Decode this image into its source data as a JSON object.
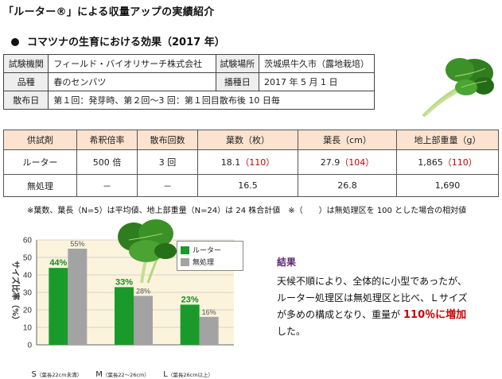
{
  "header": {
    "title": "「ルーター®」による収量アップの実績紹介"
  },
  "section": {
    "title": "コマツナの生育における効果（2017 年）"
  },
  "info_table": {
    "org_label": "試験機関",
    "org_value": "フィールド・バイオリサーチ株式会社",
    "site_label": "試験場所",
    "site_value": "茨城県牛久市（露地栽培）",
    "variety_label": "品種",
    "variety_value": "春のセンバツ",
    "sow_label": "播種日",
    "sow_value": "2017 年 5 月 1 日",
    "spray_label": "散布日",
    "spray_value": "第１回：発芽時、第２回～3 回：第１回目散布後 10 日毎"
  },
  "results_table": {
    "headers": [
      "供試剤",
      "希釈倍率",
      "散布回数",
      "葉数（枚）",
      "葉長（cm）",
      "地上部重量（g）"
    ],
    "rows": [
      {
        "name": "ルーター",
        "dilution": "500 倍",
        "times": "3 回",
        "leaves": "18.1",
        "leaves_pct": "（110）",
        "length": "27.9",
        "length_pct": "（104）",
        "weight": "1,865",
        "weight_pct": "（110）"
      },
      {
        "name": "無処理",
        "dilution": "－",
        "times": "－",
        "leaves": "16.5",
        "leaves_pct": "",
        "length": "26.8",
        "length_pct": "",
        "weight": "1,690",
        "weight_pct": ""
      }
    ]
  },
  "footnote": "※葉数、葉長（N=5）は平均値、地上部重量（N=24）は 24 株合計値　※（　　）は無処理区を 100 とした場合の相対値",
  "chart_data": {
    "type": "bar",
    "ylabel": "サイズ比率（%）",
    "ylim": [
      0,
      60
    ],
    "yticks": [
      0,
      10,
      20,
      30,
      40,
      50,
      60
    ],
    "categories": [
      "S",
      "M",
      "L"
    ],
    "category_notes": [
      "（葉長22cm未満）",
      "（葉長22～26cm）",
      "（葉長26cm以上）"
    ],
    "series": [
      {
        "name": "ルーター",
        "values": [
          44,
          33,
          23
        ],
        "labels": [
          "44%",
          "33%",
          "23%"
        ],
        "color": "#1a9a2a"
      },
      {
        "name": "無処理",
        "values": [
          55,
          28,
          16
        ],
        "labels": [
          "55%",
          "28%",
          "16%"
        ],
        "color": "#a3a3a3"
      }
    ],
    "grid": true,
    "legend": "top-right"
  },
  "conclusion": {
    "title": "結果",
    "line1": "天候不順により、全体的に小型であったが、",
    "line2": "ルーター処理区は無処理区と比べ、Ｌサイズ",
    "line3a": "が多めの構成となり、重量が ",
    "line3_highlight": "110％に増加",
    "line4": "した。"
  }
}
